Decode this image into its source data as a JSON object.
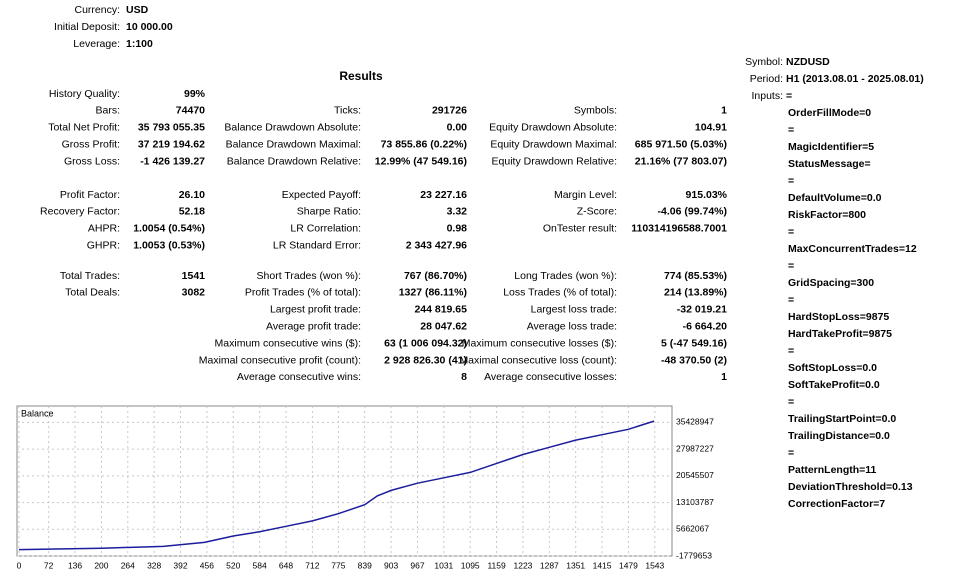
{
  "header": {
    "rows": [
      [
        "Currency:",
        "USD"
      ],
      [
        "Initial Deposit:",
        "10 000.00"
      ],
      [
        "Leverage:",
        "1:100"
      ]
    ]
  },
  "results": {
    "title": "Results",
    "sections": [
      [
        [
          [
            "History Quality:",
            "99%"
          ],
          null,
          null
        ],
        [
          [
            "Bars:",
            "74470"
          ],
          [
            "Ticks:",
            "291726"
          ],
          [
            "Symbols:",
            "1"
          ]
        ],
        [
          [
            "Total Net Profit:",
            "35 793 055.35"
          ],
          [
            "Balance Drawdown Absolute:",
            "0.00"
          ],
          [
            "Equity Drawdown Absolute:",
            "104.91"
          ]
        ],
        [
          [
            "Gross Profit:",
            "37 219 194.62"
          ],
          [
            "Balance Drawdown Maximal:",
            "73 855.86 (0.22%)"
          ],
          [
            "Equity Drawdown Maximal:",
            "685 971.50 (5.03%)"
          ]
        ],
        [
          [
            "Gross Loss:",
            "-1 426 139.27"
          ],
          [
            "Balance Drawdown Relative:",
            "12.99% (47 549.16)"
          ],
          [
            "Equity Drawdown Relative:",
            "21.16% (77 803.07)"
          ]
        ]
      ],
      [
        [
          [
            "Profit Factor:",
            "26.10"
          ],
          [
            "Expected Payoff:",
            "23 227.16"
          ],
          [
            "Margin Level:",
            "915.03%"
          ]
        ],
        [
          [
            "Recovery Factor:",
            "52.18"
          ],
          [
            "Sharpe Ratio:",
            "3.32"
          ],
          [
            "Z-Score:",
            "-4.06 (99.74%)"
          ]
        ],
        [
          [
            "AHPR:",
            "1.0054 (0.54%)"
          ],
          [
            "LR Correlation:",
            "0.98"
          ],
          [
            "OnTester result:",
            "110314196588.7001"
          ]
        ],
        [
          [
            "GHPR:",
            "1.0053 (0.53%)"
          ],
          [
            "LR Standard Error:",
            "2 343 427.96"
          ],
          null
        ]
      ],
      [
        [
          [
            "Total Trades:",
            "1541"
          ],
          [
            "Short Trades (won %):",
            "767 (86.70%)"
          ],
          [
            "Long Trades (won %):",
            "774 (85.53%)"
          ]
        ],
        [
          [
            "Total Deals:",
            "3082"
          ],
          [
            "Profit Trades (% of total):",
            "1327 (86.11%)"
          ],
          [
            "Loss Trades (% of total):",
            "214 (13.89%)"
          ]
        ],
        [
          null,
          [
            "Largest profit trade:",
            "244 819.65"
          ],
          [
            "Largest loss trade:",
            "-32 019.21"
          ]
        ],
        [
          null,
          [
            "Average profit trade:",
            "28 047.62"
          ],
          [
            "Average loss trade:",
            "-6 664.20"
          ]
        ],
        [
          null,
          [
            "Maximum consecutive wins ($):",
            "63 (1 006 094.32)"
          ],
          [
            "Maximum consecutive losses ($):",
            "5 (-47 549.16)"
          ]
        ],
        [
          null,
          [
            "Maximal consecutive profit (count):",
            "2 928 826.30 (41)"
          ],
          [
            "Maximal consecutive loss (count):",
            "-48 370.50 (2)"
          ]
        ],
        [
          null,
          [
            "Average consecutive wins:",
            "8"
          ],
          [
            "Average consecutive losses:",
            "1"
          ]
        ]
      ]
    ]
  },
  "settings": {
    "rows": [
      [
        "Symbol:",
        "NZDUSD"
      ],
      [
        "Period:",
        "H1 (2013.08.01 - 2025.08.01)"
      ],
      [
        "Inputs:",
        "="
      ]
    ],
    "inputs": [
      "OrderFillMode=0",
      "=",
      "MagicIdentifier=5",
      "StatusMessage=",
      "=",
      "DefaultVolume=0.0",
      "RiskFactor=800",
      "=",
      "MaxConcurrentTrades=12",
      "=",
      "GridSpacing=300",
      "=",
      "HardStopLoss=9875",
      "HardTakeProfit=9875",
      "=",
      "SoftStopLoss=0.0",
      "SoftTakeProfit=0.0",
      "=",
      "TrailingStartPoint=0.0",
      "TrailingDistance=0.0",
      "=",
      "PatternLength=11",
      "DeviationThreshold=0.13",
      "CorrectionFactor=7"
    ]
  },
  "chart_data": {
    "type": "line",
    "title": "Balance",
    "color": "#1c1c9c",
    "x": [
      0,
      200,
      350,
      450,
      520,
      584,
      648,
      712,
      775,
      839,
      870,
      903,
      967,
      1031,
      1095,
      1159,
      1223,
      1287,
      1351,
      1415,
      1479,
      1541
    ],
    "values": [
      10000,
      400000,
      900000,
      2000000,
      3800000,
      5000000,
      6500000,
      8000000,
      10000000,
      12500000,
      15000000,
      16500000,
      18500000,
      20000000,
      21500000,
      24000000,
      26500000,
      28500000,
      30500000,
      32000000,
      33500000,
      35803055
    ],
    "xlim": [
      0,
      1575
    ],
    "ylim": [
      -1779653,
      40000000
    ],
    "xticks": [
      0,
      72,
      136,
      200,
      264,
      328,
      392,
      456,
      520,
      584,
      648,
      712,
      775,
      839,
      903,
      967,
      1031,
      1095,
      1159,
      1223,
      1287,
      1351,
      1415,
      1479,
      1543
    ],
    "yticks": [
      -1779653,
      5662067,
      13103787,
      20545507,
      27987227,
      35428947
    ],
    "grid": true
  }
}
